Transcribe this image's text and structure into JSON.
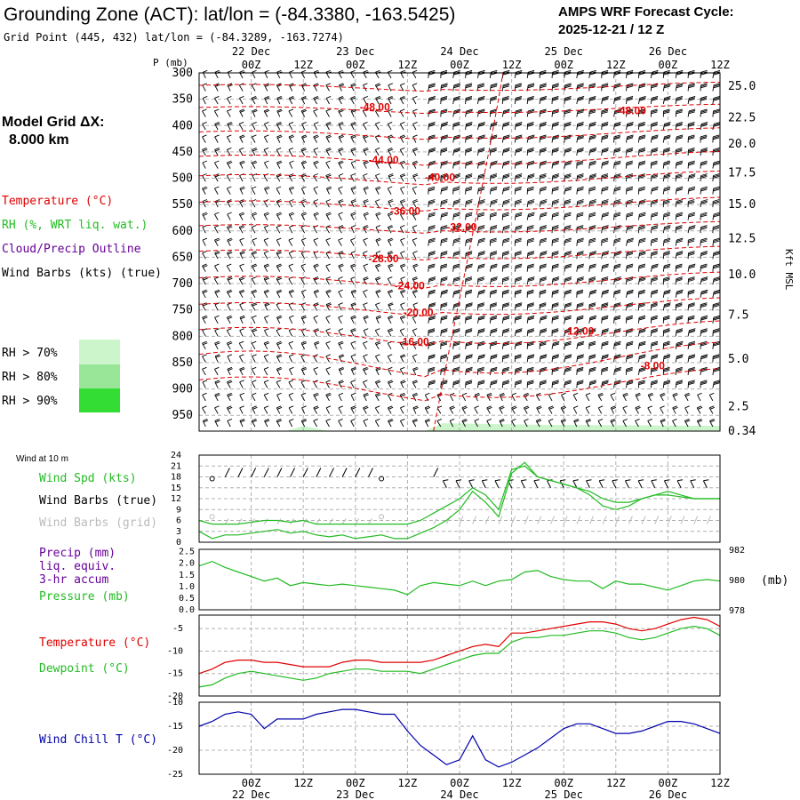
{
  "header": {
    "title": "Grounding Zone (ACT):  lat/lon = (-84.3380, -163.5425)",
    "subtitle": "Grid Point (445, 432) lat/lon = (-84.3289, -163.7274)",
    "cycle_line1": "AMPS WRF Forecast Cycle:",
    "cycle_line2": "2025-12-21 / 12  Z"
  },
  "legend": {
    "grid_label": "Model Grid ΔX:",
    "grid_value": "8.000 km",
    "temperature": "Temperature (°C)",
    "rh": "RH (%, WRT liq. wat.)",
    "cloud": "Cloud/Precip Outline",
    "wind": "Wind Barbs (kts) (true)",
    "rh70": "RH > 70%",
    "rh80": "RH > 80%",
    "rh90": "RH > 90%",
    "wind10m": "Wind at 10 m",
    "wind_spd": "Wind Spd (kts)",
    "wind_barbs_true": "Wind Barbs (true)",
    "wind_barbs_grid": "Wind Barbs (grid)",
    "precip1": "Precip (mm)",
    "precip2": "liq. equiv.",
    "precip3": "3-hr accum",
    "pressure": "Pressure (mb)",
    "pressure_unit": "(mb)",
    "temp_sfc": "Temperature (°C)",
    "dewpoint": "Dewpoint (°C)",
    "windchill": "Wind Chill T (°C)",
    "p_axis_label": "P (mb)",
    "kft_label": "Kft MSL"
  },
  "colors": {
    "temperature": "#e00000",
    "rh": "#22bb22",
    "cloud": "#660099",
    "windchill": "#0000aa",
    "rh70": "#ccf5cc",
    "rh80": "#99e699",
    "rh90": "#33dd33"
  },
  "time_axis": {
    "ticks": [
      "00Z",
      "12Z",
      "00Z",
      "12Z",
      "00Z",
      "12Z",
      "00Z",
      "12Z",
      "00Z",
      "12Z"
    ],
    "tick_hours": [
      12,
      24,
      36,
      48,
      60,
      72,
      84,
      96,
      108,
      120
    ],
    "days": [
      "22 Dec",
      "23 Dec",
      "24 Dec",
      "25 Dec",
      "26 Dec"
    ],
    "day_hours": [
      12,
      36,
      60,
      84,
      108
    ],
    "range_hours": [
      0,
      120
    ]
  },
  "chart_data": [
    {
      "type": "contour",
      "name": "cross-section",
      "ylabel": "P (mb)",
      "pressure_ticks": [
        "300",
        "350",
        "400",
        "450",
        "500",
        "550",
        "600",
        "650",
        "700",
        "750",
        "800",
        "850",
        "900",
        "950"
      ],
      "pressure_values": [
        300,
        350,
        400,
        450,
        500,
        550,
        600,
        650,
        700,
        750,
        800,
        850,
        900,
        950
      ],
      "yrange": [
        300,
        980
      ],
      "height_ticks": [
        "25.0",
        "22.5",
        "20.0",
        "17.5",
        "15.0",
        "12.5",
        "10.0",
        "7.5",
        "5.0",
        "2.5",
        "0.34"
      ],
      "height_pressures": [
        325,
        385,
        435,
        490,
        550,
        615,
        683,
        760,
        843,
        934,
        980
      ],
      "contour_labels": [
        {
          "text": "-48.00",
          "hour": 40.5,
          "p": 365
        },
        {
          "text": "-48.00",
          "hour": 99.5,
          "p": 372
        },
        {
          "text": "-44.00",
          "hour": 42.5,
          "p": 465
        },
        {
          "text": "-40.00",
          "hour": 55.5,
          "p": 498
        },
        {
          "text": "-36.00",
          "hour": 47.5,
          "p": 562
        },
        {
          "text": "-32.00",
          "hour": 60.5,
          "p": 593
        },
        {
          "text": "-28.00",
          "hour": 42.5,
          "p": 653
        },
        {
          "text": "-24.00",
          "hour": 48.5,
          "p": 704
        },
        {
          "text": "-20.00",
          "hour": 50.5,
          "p": 755
        },
        {
          "text": "-16.00",
          "hour": 49.5,
          "p": 810
        },
        {
          "text": "-12.00",
          "hour": 87.5,
          "p": 790
        },
        {
          "text": "-8.00",
          "hour": 104.5,
          "p": 856
        }
      ]
    },
    {
      "type": "line",
      "name": "wind-speed",
      "title": "Wind Spd (kts)",
      "yticks": [
        "24",
        "21",
        "18",
        "15",
        "12",
        "9",
        "6",
        "3",
        "0"
      ],
      "ytick_values": [
        24,
        21,
        18,
        15,
        12,
        9,
        6,
        3,
        0
      ],
      "ylim": [
        0,
        24
      ],
      "hours": [
        0,
        3,
        6,
        9,
        12,
        15,
        18,
        21,
        24,
        27,
        30,
        33,
        36,
        39,
        42,
        45,
        48,
        51,
        54,
        57,
        60,
        63,
        66,
        69,
        72,
        75,
        78,
        81,
        84,
        87,
        90,
        93,
        96,
        99,
        102,
        105,
        108,
        111,
        114,
        117,
        120
      ],
      "values": [
        3,
        1,
        2,
        2,
        2.5,
        3,
        3.5,
        2.5,
        3,
        2,
        1.5,
        2,
        1,
        1.5,
        2,
        1,
        1,
        2.5,
        4,
        6,
        9,
        14,
        11,
        7,
        19,
        22,
        18,
        17,
        16,
        15,
        13,
        10,
        9,
        10,
        12,
        13,
        14,
        13,
        12,
        12,
        12
      ],
      "values2": [
        6,
        5,
        5,
        5,
        5.5,
        6,
        6,
        5.5,
        6,
        5,
        5,
        5,
        5,
        5,
        5,
        5,
        5,
        6,
        8,
        10,
        12,
        15,
        13,
        9,
        20,
        21,
        18,
        17,
        16,
        15,
        14,
        12,
        11,
        11,
        12,
        13,
        13,
        12.5,
        12,
        12,
        12
      ]
    },
    {
      "type": "line",
      "name": "pressure",
      "title": "Pressure (mb)",
      "precip_ticks": [
        "2.5",
        "2.0",
        "1.5",
        "1.0",
        "0.5",
        "0.0"
      ],
      "precip_tick_values": [
        2.5,
        2.0,
        1.5,
        1.0,
        0.5,
        0.0
      ],
      "pressure_ticks": [
        "982",
        "980",
        "978"
      ],
      "pressure_tick_values": [
        982,
        980,
        978
      ],
      "ylim": [
        978,
        982
      ],
      "hours": [
        0,
        3,
        6,
        9,
        12,
        15,
        18,
        21,
        24,
        27,
        30,
        33,
        36,
        39,
        42,
        45,
        48,
        51,
        54,
        57,
        60,
        63,
        66,
        69,
        72,
        75,
        78,
        81,
        84,
        87,
        90,
        93,
        96,
        99,
        102,
        105,
        108,
        111,
        114,
        117,
        120
      ],
      "values": [
        980.9,
        981.2,
        980.8,
        980.5,
        980.2,
        979.9,
        980.1,
        979.6,
        979.8,
        979.7,
        979.6,
        979.7,
        979.6,
        979.5,
        979.4,
        979.3,
        979.0,
        979.6,
        979.8,
        979.7,
        979.6,
        979.9,
        979.6,
        979.9,
        980.0,
        980.5,
        980.6,
        980.2,
        980.0,
        979.9,
        979.9,
        979.4,
        979.9,
        979.7,
        979.7,
        979.5,
        979.3,
        979.6,
        979.9,
        980.0,
        979.9
      ],
      "precip": []
    },
    {
      "type": "line",
      "name": "temperature-dewpoint",
      "yticks": [
        "-5",
        "-10",
        "-15",
        "-20"
      ],
      "ytick_values": [
        -5,
        -10,
        -15,
        -20
      ],
      "ylim": [
        -20,
        -2
      ],
      "hours": [
        0,
        3,
        6,
        9,
        12,
        15,
        18,
        21,
        24,
        27,
        30,
        33,
        36,
        39,
        42,
        45,
        48,
        51,
        54,
        57,
        60,
        63,
        66,
        69,
        72,
        75,
        78,
        81,
        84,
        87,
        90,
        93,
        96,
        99,
        102,
        105,
        108,
        111,
        114,
        117,
        120
      ],
      "series": [
        {
          "name": "Temperature",
          "values": [
            -15,
            -14,
            -12.5,
            -12,
            -12,
            -12.5,
            -12.5,
            -13,
            -13.5,
            -13.5,
            -13.5,
            -12.5,
            -12,
            -12,
            -12.5,
            -12.5,
            -12.5,
            -12.5,
            -12,
            -11,
            -10,
            -9,
            -8.5,
            -9,
            -6,
            -6,
            -5.5,
            -5,
            -4.5,
            -4,
            -3.5,
            -3.5,
            -4,
            -5,
            -5.5,
            -5,
            -4,
            -3,
            -2.5,
            -3,
            -4.5
          ]
        },
        {
          "name": "Dewpoint",
          "values": [
            -18,
            -17.5,
            -16,
            -15,
            -14.5,
            -15,
            -15.5,
            -16,
            -16.5,
            -16,
            -15,
            -14.5,
            -14,
            -14,
            -14.5,
            -14.5,
            -14.5,
            -15,
            -14,
            -13,
            -12,
            -11,
            -10.5,
            -10.5,
            -8,
            -7,
            -7,
            -6.5,
            -6.5,
            -6,
            -5.5,
            -5.5,
            -6,
            -7,
            -7.5,
            -7,
            -6,
            -5,
            -4.5,
            -5,
            -6.5
          ]
        }
      ]
    },
    {
      "type": "line",
      "name": "wind-chill",
      "title": "Wind Chill T (°C)",
      "yticks": [
        "-10",
        "-15",
        "-20",
        "-25"
      ],
      "ytick_values": [
        -10,
        -15,
        -20,
        -25
      ],
      "ylim": [
        -25,
        -10
      ],
      "hours": [
        0,
        3,
        6,
        9,
        12,
        15,
        18,
        21,
        24,
        27,
        30,
        33,
        36,
        39,
        42,
        45,
        48,
        51,
        54,
        57,
        60,
        63,
        66,
        69,
        72,
        75,
        78,
        81,
        84,
        87,
        90,
        93,
        96,
        99,
        102,
        105,
        108,
        111,
        114,
        117,
        120
      ],
      "values": [
        -15,
        -14,
        -12.5,
        -12,
        -12.5,
        -15.5,
        -13.5,
        -13.5,
        -13.5,
        -12.5,
        -12,
        -11.5,
        -11.5,
        -12,
        -12.5,
        -12.5,
        -16,
        -19,
        -21,
        -23,
        -22,
        -17,
        -22,
        -23.5,
        -22.5,
        -21,
        -19.5,
        -17.5,
        -15.5,
        -14.5,
        -14.5,
        -15.5,
        -16.5,
        -16.5,
        -16,
        -15,
        -14,
        -14,
        -14.5,
        -15.5,
        -16.5
      ]
    }
  ]
}
